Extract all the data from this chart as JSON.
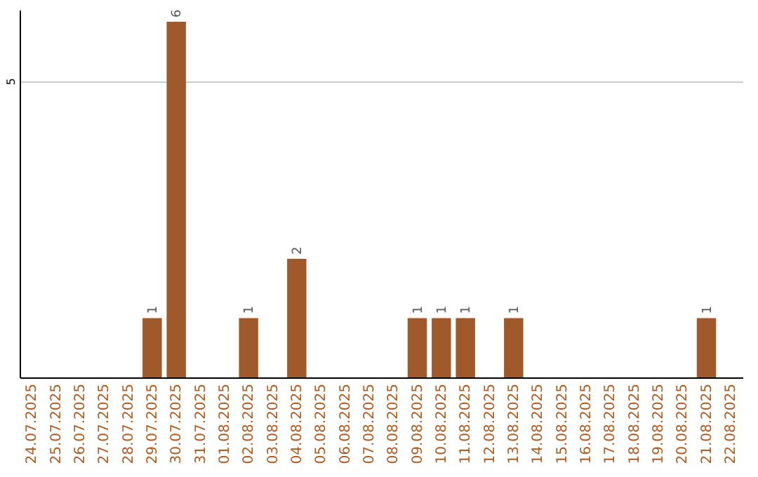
{
  "chart_data": {
    "type": "bar",
    "categories": [
      "24.07.2025",
      "25.07.2025",
      "26.07.2025",
      "27.07.2025",
      "28.07.2025",
      "29.07.2025",
      "30.07.2025",
      "31.07.2025",
      "01.08.2025",
      "02.08.2025",
      "03.08.2025",
      "04.08.2025",
      "05.08.2025",
      "06.08.2025",
      "07.08.2025",
      "08.08.2025",
      "09.08.2025",
      "10.08.2025",
      "11.08.2025",
      "12.08.2025",
      "13.08.2025",
      "14.08.2025",
      "15.08.2025",
      "16.08.2025",
      "17.08.2025",
      "18.08.2025",
      "19.08.2025",
      "20.08.2025",
      "21.08.2025",
      "22.08.2025"
    ],
    "values": [
      0,
      0,
      0,
      0,
      0,
      1,
      6,
      0,
      0,
      1,
      0,
      2,
      0,
      0,
      0,
      0,
      1,
      1,
      1,
      0,
      1,
      0,
      0,
      0,
      0,
      0,
      0,
      0,
      1,
      0
    ],
    "value_labels": [
      null,
      null,
      null,
      null,
      null,
      "1",
      "6",
      null,
      null,
      "1",
      null,
      "2",
      null,
      null,
      null,
      null,
      "1",
      "1",
      "1",
      null,
      "1",
      null,
      null,
      null,
      null,
      null,
      null,
      null,
      "1",
      null
    ],
    "color": "#a0592a",
    "ylim": [
      0,
      6.2
    ],
    "yticks": [
      5
    ],
    "grid": "y"
  }
}
